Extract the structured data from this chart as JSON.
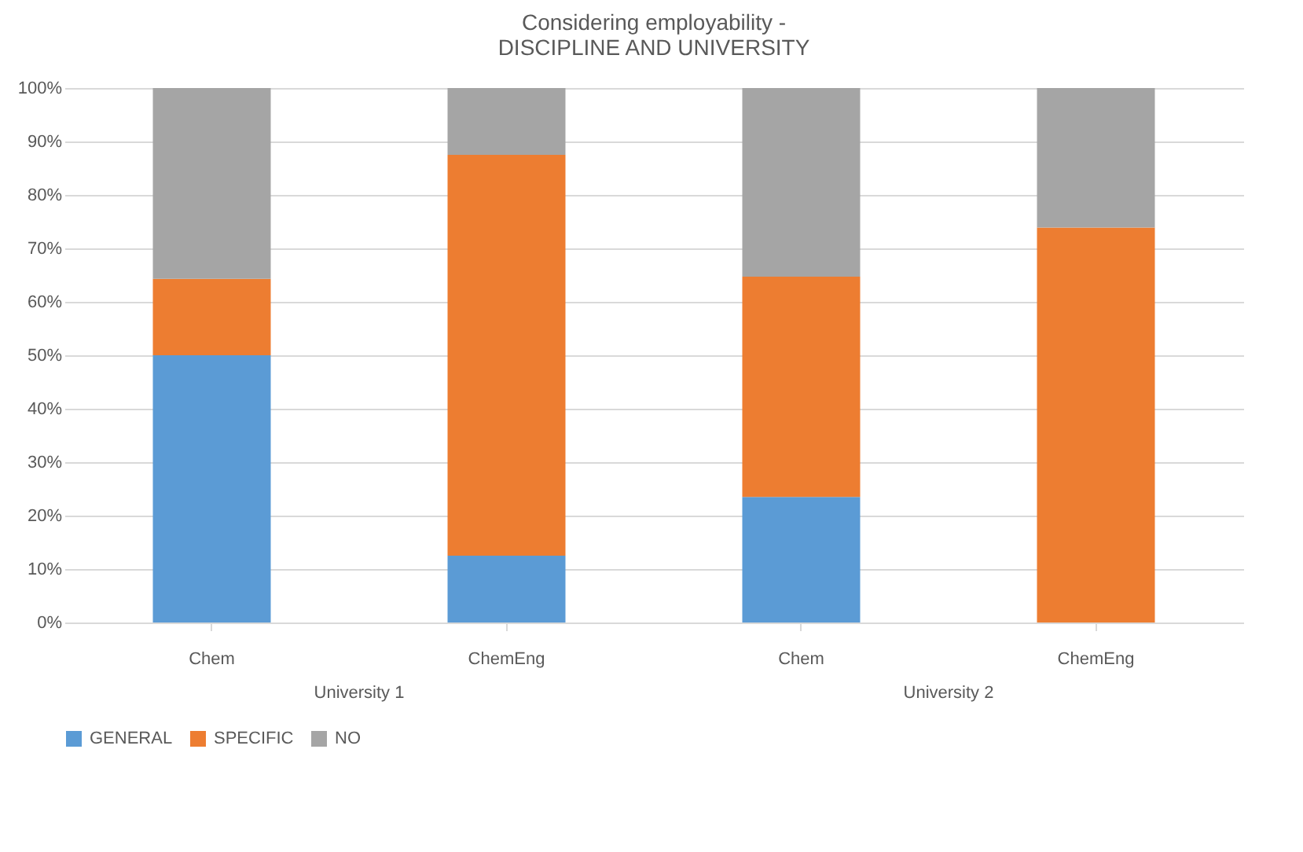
{
  "chart_data": {
    "type": "bar",
    "title": "Considering employability -\nDISCIPLINE AND UNIVERSITY",
    "categories": [
      "Chem",
      "ChemEng",
      "Chem",
      "ChemEng"
    ],
    "stacked": true,
    "series": [
      {
        "name": "GENERAL",
        "color": "#5b9bd5",
        "values": [
          50,
          12.5,
          23.5,
          0
        ]
      },
      {
        "name": "SPECIFIC",
        "color": "#ed7d31",
        "values": [
          14.3,
          75,
          41.2,
          73.9
        ]
      },
      {
        "name": "NO",
        "color": "#a5a5a5",
        "values": [
          35.7,
          12.5,
          35.3,
          26.1
        ]
      }
    ],
    "ylim": [
      0,
      100
    ],
    "yticks": [
      {
        "value": 0,
        "label": "0%"
      },
      {
        "value": 10,
        "label": "10%"
      },
      {
        "value": 20,
        "label": "20%"
      },
      {
        "value": 30,
        "label": "30%"
      },
      {
        "value": 40,
        "label": "40%"
      },
      {
        "value": 50,
        "label": "50%"
      },
      {
        "value": 60,
        "label": "60%"
      },
      {
        "value": 70,
        "label": "70%"
      },
      {
        "value": 80,
        "label": "80%"
      },
      {
        "value": 90,
        "label": "90%"
      },
      {
        "value": 100,
        "label": "100%"
      }
    ],
    "grid": "y",
    "legend": "bottom",
    "annotations": [
      "University 1",
      "University 2"
    ]
  }
}
